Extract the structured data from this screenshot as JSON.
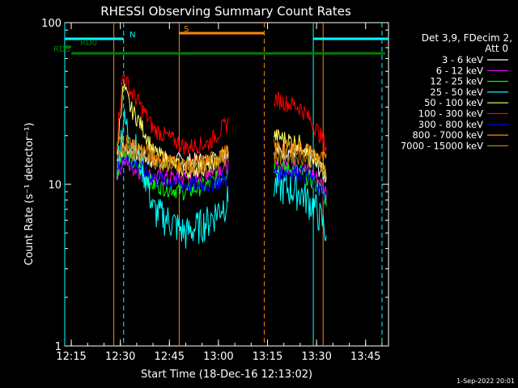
{
  "chart_data": {
    "type": "line",
    "title": "RHESSI Observing Summary Count Rates",
    "xlabel": "Start Time (18-Dec-16 12:13:02)",
    "ylabel": "Count Rate (s⁻¹ detector⁻¹)",
    "y_scale": "log",
    "ylim": [
      1,
      100
    ],
    "xlim": [
      "12:13",
      "13:52"
    ],
    "x_ticks": [
      "12:15",
      "12:30",
      "12:45",
      "13:00",
      "13:15",
      "13:30",
      "13:45"
    ],
    "y_ticks": [
      "1",
      "10",
      "100"
    ],
    "legend_header": [
      "Det 3,9, FDecim 2,",
      "Att 0"
    ],
    "legend_position": "right",
    "series": [
      {
        "name": "3 - 6 keV",
        "color": "#ffffff",
        "x": [
          "12:29",
          "12:31",
          "12:33",
          "12:40",
          "12:50",
          "12:57",
          "13:03",
          "13:17",
          "13:25",
          "13:30",
          "13:33"
        ],
        "y": [
          14,
          17,
          16,
          14,
          14,
          14,
          16,
          16,
          16,
          13,
          11
        ]
      },
      {
        "name": "6 - 12 keV",
        "color": "#ff00ff",
        "x": [
          "12:29",
          "12:31",
          "12:33",
          "12:40",
          "12:50",
          "12:57",
          "13:03",
          "13:17",
          "13:25",
          "13:30",
          "13:33"
        ],
        "y": [
          12,
          14,
          13,
          11,
          11,
          12,
          13,
          13,
          13,
          11,
          9
        ]
      },
      {
        "name": "12 - 25 keV",
        "color": "#00ff00",
        "x": [
          "12:29",
          "12:31",
          "12:33",
          "12:40",
          "12:50",
          "12:57",
          "13:03",
          "13:17",
          "13:25",
          "13:30",
          "13:33"
        ],
        "y": [
          12,
          16,
          14,
          10,
          9,
          10,
          12,
          13,
          12,
          10,
          8
        ]
      },
      {
        "name": "25 - 50 keV",
        "color": "#00ffff",
        "x": [
          "12:29",
          "12:31",
          "12:33",
          "12:40",
          "12:50",
          "12:57",
          "13:03",
          "13:17",
          "13:25",
          "13:30",
          "13:33"
        ],
        "y": [
          13,
          25,
          20,
          7,
          5,
          6,
          8,
          10,
          9,
          7,
          5
        ]
      },
      {
        "name": "50 - 100 keV",
        "color": "#ffff66",
        "x": [
          "12:29",
          "12:31",
          "12:33",
          "12:40",
          "12:50",
          "12:57",
          "13:03",
          "13:17",
          "13:25",
          "13:30",
          "13:33"
        ],
        "y": [
          14,
          40,
          30,
          16,
          12,
          13,
          16,
          20,
          18,
          14,
          12
        ]
      },
      {
        "name": "100 - 300 keV",
        "color": "#ff0000",
        "x": [
          "12:29",
          "12:31",
          "12:33",
          "12:40",
          "12:50",
          "12:57",
          "13:03",
          "13:17",
          "13:25",
          "13:30",
          "13:33"
        ],
        "y": [
          18,
          48,
          38,
          22,
          17,
          18,
          24,
          34,
          30,
          22,
          17
        ]
      },
      {
        "name": "300 - 800 keV",
        "color": "#0000ff",
        "x": [
          "12:29",
          "12:31",
          "12:33",
          "12:40",
          "12:50",
          "12:57",
          "13:03",
          "13:17",
          "13:25",
          "13:30",
          "13:33"
        ],
        "y": [
          12,
          15,
          14,
          11,
          10,
          10,
          11,
          12,
          12,
          10,
          8
        ]
      },
      {
        "name": "800 - 7000 keV",
        "color": "#ff8800",
        "x": [
          "12:29",
          "12:31",
          "12:33",
          "12:40",
          "12:50",
          "12:57",
          "13:03",
          "13:17",
          "13:25",
          "13:30",
          "13:33"
        ],
        "y": [
          18,
          19,
          18,
          15,
          13,
          14,
          16,
          17,
          17,
          15,
          14
        ]
      },
      {
        "name": "7000 - 15000 keV",
        "color": "#b8860b",
        "x": [
          "12:29",
          "12:31",
          "12:33",
          "12:40",
          "12:50",
          "12:57",
          "13:03",
          "13:17",
          "13:25",
          "13:30",
          "13:33"
        ],
        "y": [
          16,
          17,
          16,
          14,
          13,
          13,
          15,
          15,
          15,
          14,
          12
        ]
      }
    ],
    "flag_bars": [
      {
        "label": "N",
        "color": "#00ffff",
        "ranges": [
          [
            "12:13",
            "12:31"
          ],
          [
            "13:29",
            "13:52"
          ]
        ]
      },
      {
        "label": "S",
        "color": "#ff8800",
        "ranges": [
          [
            "12:48",
            "13:14"
          ]
        ]
      },
      {
        "label": "RD0",
        "color": "#008000",
        "ranges": [
          [
            "12:13",
            "12:15"
          ]
        ]
      },
      {
        "label": "RDS",
        "color": "#008000",
        "ranges": [
          [
            "12:15",
            "12:44"
          ],
          [
            "12:44",
            "13:14"
          ],
          [
            "13:14",
            "13:28"
          ],
          [
            "13:28",
            "13:51"
          ]
        ]
      }
    ],
    "vlines": [
      {
        "x": "12:13",
        "color": "#00ffff",
        "style": "solid"
      },
      {
        "x": "12:31",
        "color": "#00ffff",
        "style": "dashed"
      },
      {
        "x": "12:28",
        "color": "#ff8800",
        "style": "solid"
      },
      {
        "x": "12:48",
        "color": "#ff8800",
        "style": "solid"
      },
      {
        "x": "13:14",
        "color": "#ff8800",
        "style": "dashed"
      },
      {
        "x": "13:29",
        "color": "#00ffff",
        "style": "solid"
      },
      {
        "x": "13:32",
        "color": "#ff8800",
        "style": "solid"
      },
      {
        "x": "13:50",
        "color": "#00ffff",
        "style": "dashed"
      }
    ],
    "timestamp": "1-Sep-2022 20:01"
  }
}
